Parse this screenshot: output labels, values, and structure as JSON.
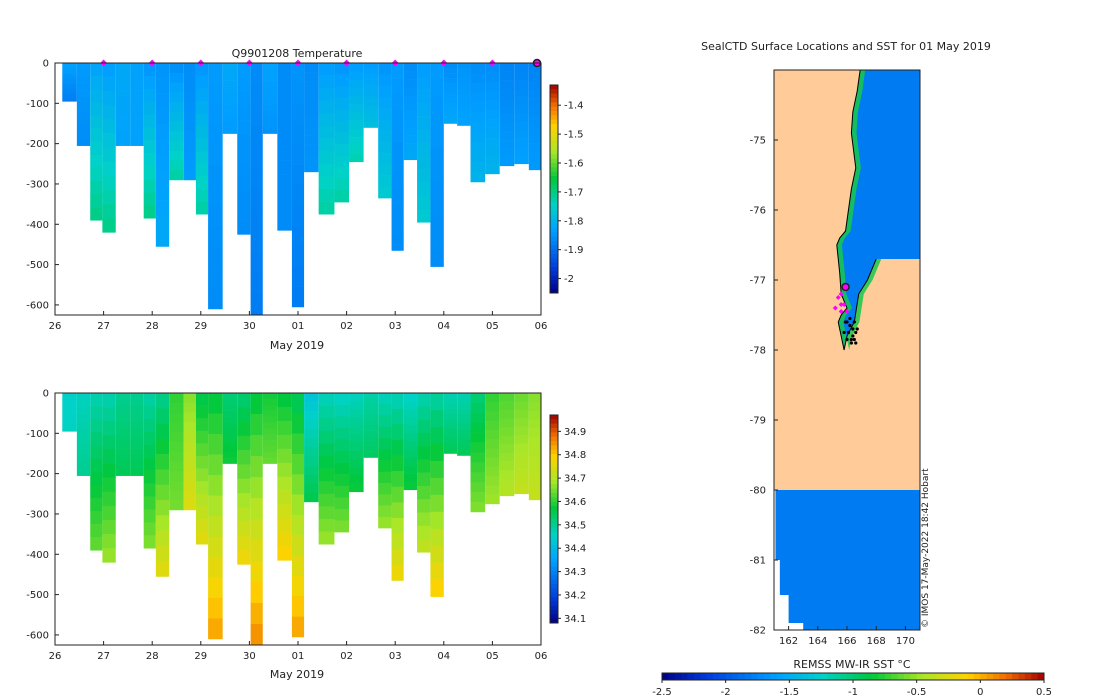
{
  "chart_data": [
    {
      "type": "heatmap",
      "id": "temperature",
      "title": "Q9901208  Temperature",
      "xlabel": "May 2019",
      "ylabel": "",
      "x_tick_labels": [
        "26",
        "27",
        "28",
        "29",
        "30",
        "01",
        "02",
        "03",
        "04",
        "05",
        "06"
      ],
      "xlim": [
        26.0,
        36.0
      ],
      "ylim": [
        -625,
        0
      ],
      "y_ticks": [
        0,
        -100,
        -200,
        -300,
        -400,
        -500,
        -600
      ],
      "colorbar": {
        "range": [
          -2.05,
          -1.33
        ],
        "tick_values": [
          -2,
          -1.9,
          -1.8,
          -1.7,
          -1.6,
          -1.5,
          -1.4
        ],
        "tick_labels": [
          "-2",
          "-1.9",
          "-1.8",
          "-1.7",
          "-1.6",
          "-1.5",
          "-1.4"
        ]
      },
      "surface_markers_day": [
        27.0,
        28.0,
        29.0,
        30.0,
        31.0,
        32.0,
        33.0,
        34.0,
        35.0
      ],
      "final_marker_day": 36.0,
      "profiles": [
        {
          "day": 26.3,
          "max_depth": 95,
          "top": -1.83,
          "bottom": -1.88
        },
        {
          "day": 26.6,
          "max_depth": 205,
          "top": -1.84,
          "bottom": -1.86
        },
        {
          "day": 26.85,
          "max_depth": 390,
          "top": -1.83,
          "bottom": -1.7
        },
        {
          "day": 27.1,
          "max_depth": 420,
          "top": -1.84,
          "bottom": -1.7
        },
        {
          "day": 27.4,
          "max_depth": 205,
          "top": -1.82,
          "bottom": -1.83
        },
        {
          "day": 27.7,
          "max_depth": 205,
          "top": -1.83,
          "bottom": -1.83
        },
        {
          "day": 27.95,
          "max_depth": 385,
          "top": -1.85,
          "bottom": -1.7
        },
        {
          "day": 28.2,
          "max_depth": 455,
          "top": -1.85,
          "bottom": -1.82
        },
        {
          "day": 28.5,
          "max_depth": 290,
          "top": -1.86,
          "bottom": -1.72
        },
        {
          "day": 28.8,
          "max_depth": 290,
          "top": -1.86,
          "bottom": -1.84
        },
        {
          "day": 29.0,
          "max_depth": 375,
          "top": -1.85,
          "bottom": -1.72
        },
        {
          "day": 29.3,
          "max_depth": 610,
          "top": -1.84,
          "bottom": -1.86
        },
        {
          "day": 29.6,
          "max_depth": 175,
          "top": -1.82,
          "bottom": -1.84
        },
        {
          "day": 29.9,
          "max_depth": 425,
          "top": -1.84,
          "bottom": -1.86
        },
        {
          "day": 30.15,
          "max_depth": 625,
          "top": -1.86,
          "bottom": -1.88
        },
        {
          "day": 30.4,
          "max_depth": 175,
          "top": -1.83,
          "bottom": -1.85
        },
        {
          "day": 30.75,
          "max_depth": 415,
          "top": -1.86,
          "bottom": -1.86
        },
        {
          "day": 31.0,
          "max_depth": 605,
          "top": -1.85,
          "bottom": -1.88
        },
        {
          "day": 31.25,
          "max_depth": 270,
          "top": -1.86,
          "bottom": -1.85
        },
        {
          "day": 31.6,
          "max_depth": 375,
          "top": -1.84,
          "bottom": -1.72
        },
        {
          "day": 31.9,
          "max_depth": 345,
          "top": -1.85,
          "bottom": -1.72
        },
        {
          "day": 32.2,
          "max_depth": 245,
          "top": -1.84,
          "bottom": -1.73
        },
        {
          "day": 32.5,
          "max_depth": 160,
          "top": -1.84,
          "bottom": -1.78
        },
        {
          "day": 32.8,
          "max_depth": 335,
          "top": -1.85,
          "bottom": -1.76
        },
        {
          "day": 33.05,
          "max_depth": 465,
          "top": -1.84,
          "bottom": -1.86
        },
        {
          "day": 33.3,
          "max_depth": 240,
          "top": -1.86,
          "bottom": -1.82
        },
        {
          "day": 33.6,
          "max_depth": 395,
          "top": -1.84,
          "bottom": -1.76
        },
        {
          "day": 33.85,
          "max_depth": 505,
          "top": -1.84,
          "bottom": -1.86
        },
        {
          "day": 34.15,
          "max_depth": 150,
          "top": -1.86,
          "bottom": -1.82
        },
        {
          "day": 34.4,
          "max_depth": 155,
          "top": -1.85,
          "bottom": -1.83
        },
        {
          "day": 34.7,
          "max_depth": 295,
          "top": -1.86,
          "bottom": -1.8
        },
        {
          "day": 35.0,
          "max_depth": 275,
          "top": -1.86,
          "bottom": -1.8
        },
        {
          "day": 35.3,
          "max_depth": 255,
          "top": -1.87,
          "bottom": -1.84
        },
        {
          "day": 35.6,
          "max_depth": 250,
          "top": -1.87,
          "bottom": -1.83
        },
        {
          "day": 35.9,
          "max_depth": 265,
          "top": -1.87,
          "bottom": -1.84
        }
      ]
    },
    {
      "type": "heatmap",
      "id": "salinity",
      "title": "",
      "xlabel": "May 2019",
      "ylabel": "",
      "x_tick_labels": [
        "26",
        "27",
        "28",
        "29",
        "30",
        "01",
        "02",
        "03",
        "04",
        "05",
        "06"
      ],
      "xlim": [
        26.0,
        36.0
      ],
      "ylim": [
        -625,
        0
      ],
      "y_ticks": [
        0,
        -100,
        -200,
        -300,
        -400,
        -500,
        -600
      ],
      "colorbar": {
        "range": [
          34.08,
          34.97
        ],
        "tick_values": [
          34.1,
          34.2,
          34.3,
          34.4,
          34.5,
          34.6,
          34.7,
          34.8,
          34.9
        ],
        "tick_labels": [
          "34.1",
          "34.2",
          "34.3",
          "34.4",
          "34.5",
          "34.6",
          "34.7",
          "34.8",
          "34.9"
        ]
      },
      "profiles": [
        {
          "day": 26.3,
          "max_depth": 95,
          "top": 34.45,
          "bottom": 34.46
        },
        {
          "day": 26.6,
          "max_depth": 205,
          "top": 34.46,
          "bottom": 34.5
        },
        {
          "day": 26.85,
          "max_depth": 390,
          "top": 34.47,
          "bottom": 34.64
        },
        {
          "day": 27.1,
          "max_depth": 420,
          "top": 34.47,
          "bottom": 34.68
        },
        {
          "day": 27.4,
          "max_depth": 205,
          "top": 34.5,
          "bottom": 34.55
        },
        {
          "day": 27.7,
          "max_depth": 205,
          "top": 34.5,
          "bottom": 34.55
        },
        {
          "day": 27.95,
          "max_depth": 385,
          "top": 34.48,
          "bottom": 34.66
        },
        {
          "day": 28.2,
          "max_depth": 455,
          "top": 34.5,
          "bottom": 34.76
        },
        {
          "day": 28.5,
          "max_depth": 290,
          "top": 34.6,
          "bottom": 34.65
        },
        {
          "day": 28.8,
          "max_depth": 290,
          "top": 34.66,
          "bottom": 34.75
        },
        {
          "day": 29.0,
          "max_depth": 375,
          "top": 34.55,
          "bottom": 34.76
        },
        {
          "day": 29.3,
          "max_depth": 610,
          "top": 34.56,
          "bottom": 34.84
        },
        {
          "day": 29.6,
          "max_depth": 175,
          "top": 34.52,
          "bottom": 34.58
        },
        {
          "day": 29.9,
          "max_depth": 425,
          "top": 34.52,
          "bottom": 34.78
        },
        {
          "day": 30.15,
          "max_depth": 625,
          "top": 34.56,
          "bottom": 34.86
        },
        {
          "day": 30.4,
          "max_depth": 175,
          "top": 34.58,
          "bottom": 34.64
        },
        {
          "day": 30.75,
          "max_depth": 415,
          "top": 34.56,
          "bottom": 34.8
        },
        {
          "day": 31.0,
          "max_depth": 605,
          "top": 34.54,
          "bottom": 34.84
        },
        {
          "day": 31.25,
          "max_depth": 270,
          "top": 34.42,
          "bottom": 34.56
        },
        {
          "day": 31.6,
          "max_depth": 375,
          "top": 34.46,
          "bottom": 34.68
        },
        {
          "day": 31.9,
          "max_depth": 345,
          "top": 34.45,
          "bottom": 34.66
        },
        {
          "day": 32.2,
          "max_depth": 245,
          "top": 34.46,
          "bottom": 34.58
        },
        {
          "day": 32.5,
          "max_depth": 160,
          "top": 34.48,
          "bottom": 34.54
        },
        {
          "day": 32.8,
          "max_depth": 335,
          "top": 34.46,
          "bottom": 34.68
        },
        {
          "day": 33.05,
          "max_depth": 465,
          "top": 34.46,
          "bottom": 34.78
        },
        {
          "day": 33.3,
          "max_depth": 240,
          "top": 34.45,
          "bottom": 34.58
        },
        {
          "day": 33.6,
          "max_depth": 395,
          "top": 34.47,
          "bottom": 34.72
        },
        {
          "day": 33.85,
          "max_depth": 505,
          "top": 34.48,
          "bottom": 34.8
        },
        {
          "day": 34.15,
          "max_depth": 150,
          "top": 34.47,
          "bottom": 34.55
        },
        {
          "day": 34.4,
          "max_depth": 155,
          "top": 34.47,
          "bottom": 34.55
        },
        {
          "day": 34.7,
          "max_depth": 295,
          "top": 34.52,
          "bottom": 34.66
        },
        {
          "day": 35.0,
          "max_depth": 275,
          "top": 34.6,
          "bottom": 34.68
        },
        {
          "day": 35.3,
          "max_depth": 255,
          "top": 34.62,
          "bottom": 34.7
        },
        {
          "day": 35.6,
          "max_depth": 250,
          "top": 34.64,
          "bottom": 34.72
        },
        {
          "day": 35.9,
          "max_depth": 265,
          "top": 34.66,
          "bottom": 34.72
        }
      ]
    },
    {
      "type": "map",
      "id": "sst-map",
      "title": "SealCTD Surface Locations and SST for 01 May 2019",
      "xlim": [
        161.0,
        171.0
      ],
      "ylim": [
        -82.0,
        -74.0
      ],
      "x_tick_labels": [
        "162",
        "164",
        "166",
        "168",
        "170"
      ],
      "x_tick_values": [
        162,
        164,
        166,
        168,
        170
      ],
      "y_tick_labels": [
        "-75",
        "-76",
        "-77",
        "-78",
        "-79",
        "-80",
        "-81",
        "-82"
      ],
      "y_tick_values": [
        -75,
        -76,
        -77,
        -78,
        -79,
        -80,
        -81,
        -82
      ],
      "sst_value": -1.8,
      "coast_outline": [
        [
          168.0,
          -74.0
        ],
        [
          166.9,
          -74.0
        ],
        [
          166.7,
          -74.3
        ],
        [
          166.4,
          -74.6
        ],
        [
          166.3,
          -74.9
        ],
        [
          166.6,
          -75.4
        ],
        [
          166.3,
          -75.7
        ],
        [
          166.1,
          -76.0
        ],
        [
          165.9,
          -76.3
        ],
        [
          165.5,
          -76.4
        ],
        [
          165.3,
          -76.5
        ],
        [
          165.5,
          -76.9
        ],
        [
          165.6,
          -77.2
        ],
        [
          166.0,
          -77.4
        ],
        [
          165.6,
          -77.5
        ],
        [
          165.4,
          -77.6
        ],
        [
          165.6,
          -77.8
        ],
        [
          165.8,
          -78.0
        ],
        [
          166.0,
          -77.8
        ],
        [
          166.5,
          -77.6
        ],
        [
          166.8,
          -77.2
        ],
        [
          167.4,
          -77.0
        ],
        [
          168.0,
          -76.7
        ]
      ],
      "colorbar": {
        "label": "REMSS MW-IR SST °C",
        "range": [
          -2.5,
          0.5
        ],
        "tick_values": [
          -2.5,
          -2,
          -1.5,
          -1,
          -0.5,
          0,
          0.5
        ],
        "tick_labels": [
          "-2.5",
          "-2",
          "-1.5",
          "-1",
          "-0.5",
          "0",
          "0.5"
        ]
      },
      "magenta_markers": [
        [
          165.4,
          -77.25
        ],
        [
          165.6,
          -77.2
        ],
        [
          165.6,
          -77.35
        ],
        [
          165.8,
          -77.35
        ],
        [
          166.0,
          -77.45
        ],
        [
          165.6,
          -77.45
        ],
        [
          165.2,
          -77.4
        ]
      ],
      "black_track": [
        [
          165.9,
          -77.6
        ],
        [
          166.2,
          -77.65
        ],
        [
          166.4,
          -77.7
        ],
        [
          166.6,
          -77.75
        ],
        [
          166.5,
          -77.85
        ],
        [
          166.3,
          -77.9
        ],
        [
          166.0,
          -77.85
        ],
        [
          165.8,
          -77.75
        ],
        [
          166.1,
          -77.75
        ],
        [
          166.4,
          -77.8
        ],
        [
          166.7,
          -77.7
        ],
        [
          166.5,
          -77.6
        ],
        [
          166.2,
          -77.55
        ],
        [
          166.0,
          -77.6
        ],
        [
          166.3,
          -77.85
        ],
        [
          166.6,
          -77.9
        ]
      ],
      "ringed_marker": [
        165.9,
        -77.1
      ],
      "watermark": "© IMOS 17-May-2022 18:42 Hobart"
    }
  ],
  "colors": {
    "land": "#ffcc99",
    "sst_ocean": "#0093ec",
    "coast_green": "#18c84a",
    "marker_magenta": "#ff00ff",
    "axis": "#222222"
  }
}
